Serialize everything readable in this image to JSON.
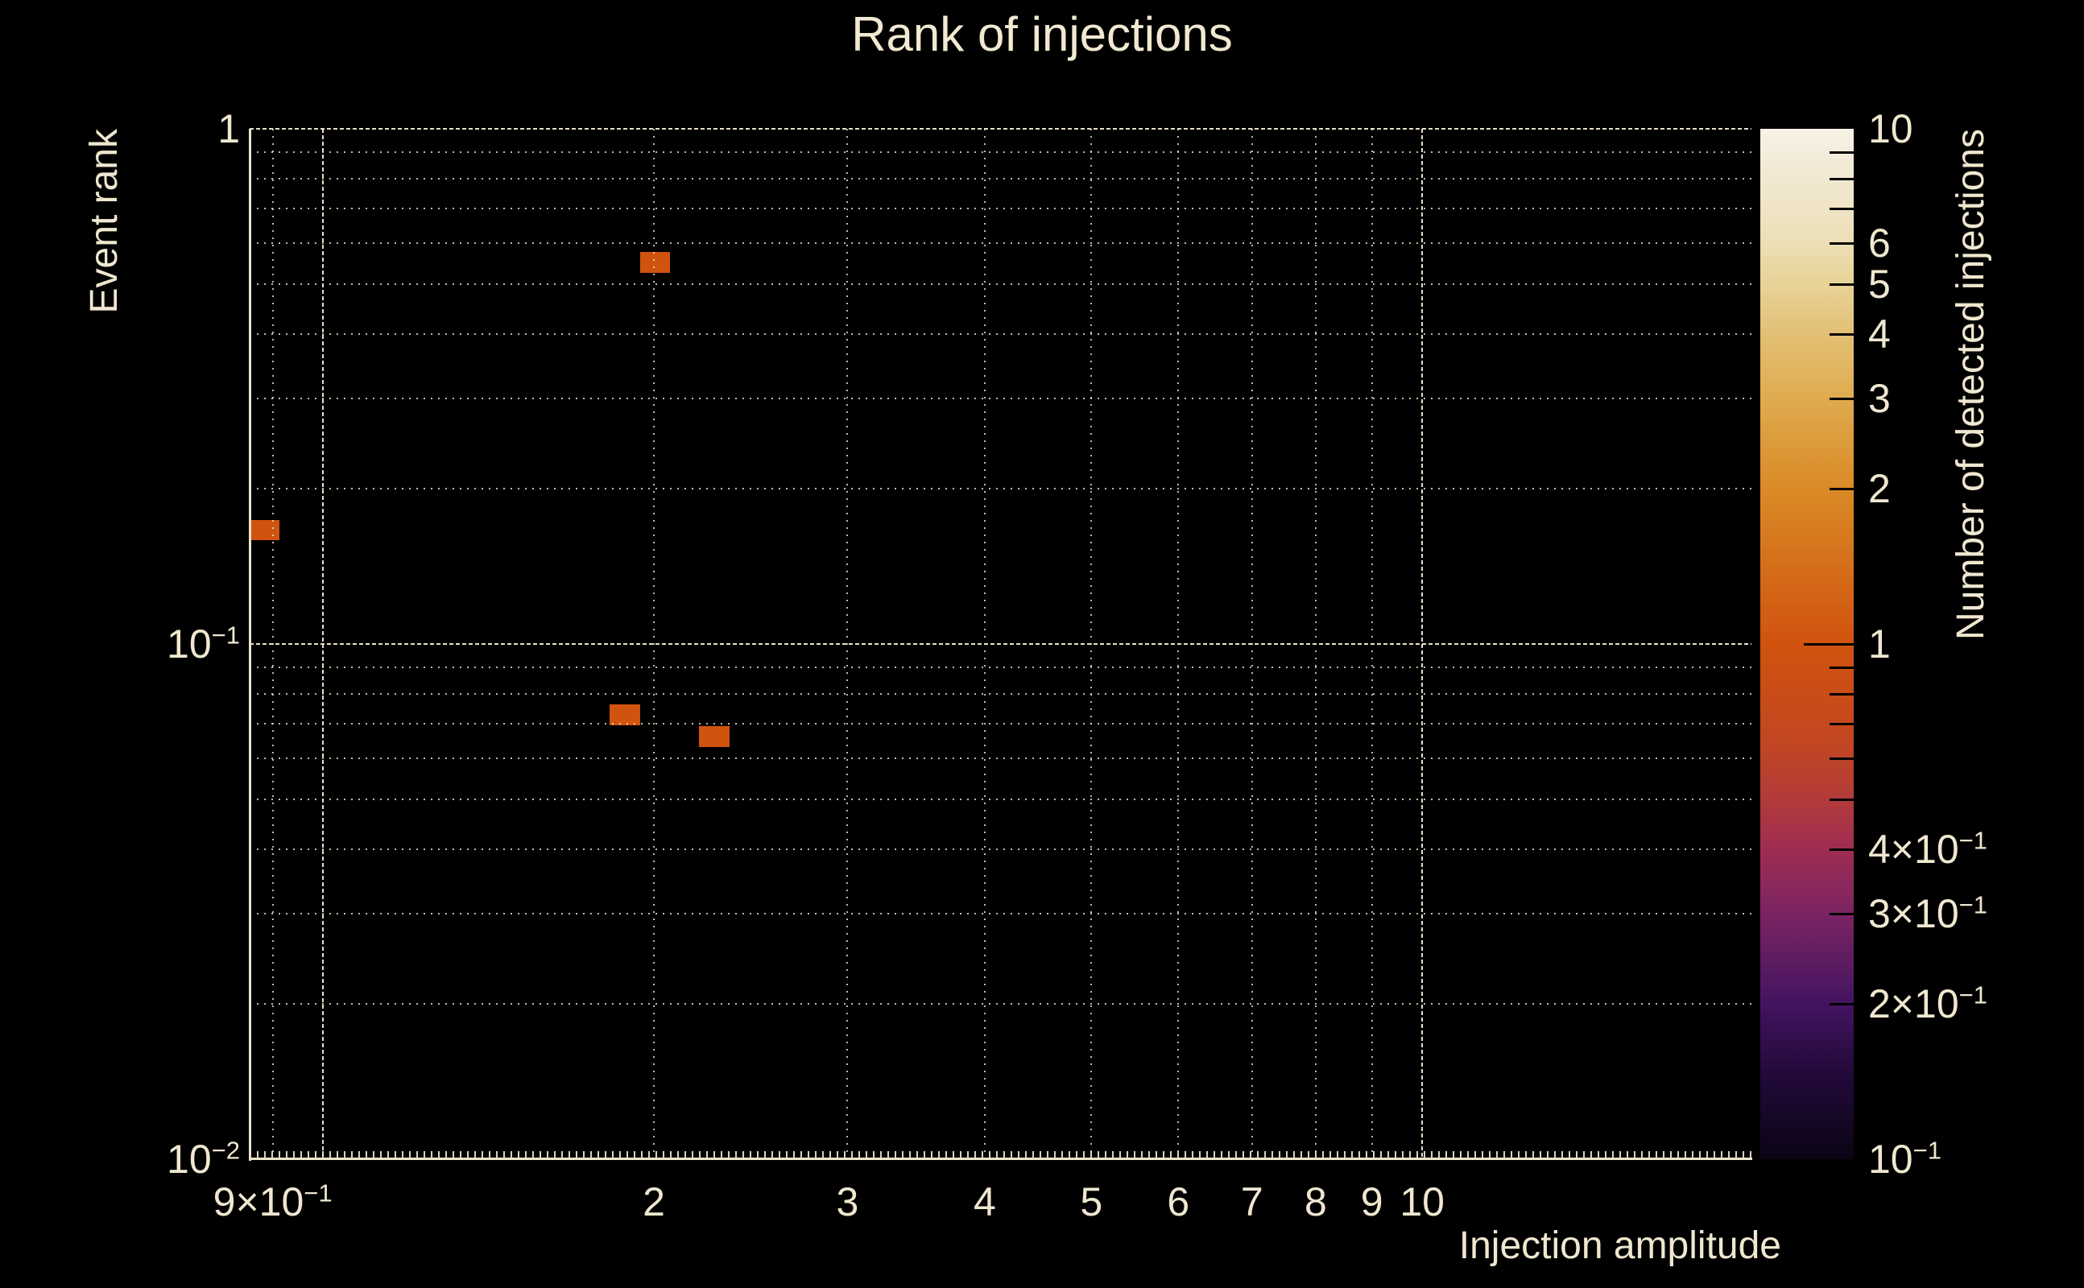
{
  "chart_data": {
    "type": "heatmap",
    "title": "Rank of injections",
    "xlabel": "Injection amplitude",
    "ylabel": "Event rank",
    "colorbar_label": "Number of detected injections",
    "xscale": "log",
    "yscale": "log",
    "colorscale": "log",
    "xlim": [
      0.8575,
      19.93
    ],
    "ylim": [
      0.01,
      1.0
    ],
    "clim": [
      0.1,
      10
    ],
    "grid": true,
    "bin_color": "#d0530e",
    "bins": [
      {
        "x": [
          0.859,
          0.913
        ],
        "y": [
          0.159,
          0.174
        ],
        "count": 1
      },
      {
        "x": [
          1.943,
          2.068
        ],
        "y": [
          0.525,
          0.577
        ],
        "count": 1
      },
      {
        "x": [
          1.823,
          1.943
        ],
        "y": [
          0.0695,
          0.0764
        ],
        "count": 1
      },
      {
        "x": [
          2.198,
          2.344
        ],
        "y": [
          0.0631,
          0.0693
        ],
        "count": 1
      }
    ],
    "x_grid": [
      {
        "v": 0.9
      },
      {
        "v": 1,
        "major": true
      },
      {
        "v": 2
      },
      {
        "v": 3
      },
      {
        "v": 4
      },
      {
        "v": 5
      },
      {
        "v": 6
      },
      {
        "v": 7
      },
      {
        "v": 8
      },
      {
        "v": 9
      },
      {
        "v": 10,
        "major": true
      }
    ],
    "y_grid": [
      {
        "v": 1,
        "major": true
      },
      {
        "v": 0.9
      },
      {
        "v": 0.8
      },
      {
        "v": 0.7
      },
      {
        "v": 0.6
      },
      {
        "v": 0.5
      },
      {
        "v": 0.4
      },
      {
        "v": 0.3
      },
      {
        "v": 0.2
      },
      {
        "v": 0.1,
        "major": true
      },
      {
        "v": 0.09
      },
      {
        "v": 0.08
      },
      {
        "v": 0.07
      },
      {
        "v": 0.06
      },
      {
        "v": 0.05
      },
      {
        "v": 0.04
      },
      {
        "v": 0.03
      },
      {
        "v": 0.02
      }
    ],
    "x_tick_labels": [
      {
        "v": 0.9,
        "base": "9×10",
        "exp": "−1"
      },
      {
        "v": 2,
        "base": "2"
      },
      {
        "v": 3,
        "base": "3"
      },
      {
        "v": 4,
        "base": "4"
      },
      {
        "v": 5,
        "base": "5"
      },
      {
        "v": 6,
        "base": "6"
      },
      {
        "v": 7,
        "base": "7"
      },
      {
        "v": 8,
        "base": "8"
      },
      {
        "v": 9,
        "base": "9"
      },
      {
        "v": 10,
        "base": "10"
      }
    ],
    "y_tick_labels": [
      {
        "v": 1,
        "base": "1"
      },
      {
        "v": 0.1,
        "base": "10",
        "exp": "−1"
      },
      {
        "v": 0.01,
        "base": "10",
        "exp": "−2"
      }
    ],
    "colorbar_tick_labels": [
      {
        "v": 10,
        "base": "10"
      },
      {
        "v": 6,
        "base": "6"
      },
      {
        "v": 5,
        "base": "5"
      },
      {
        "v": 4,
        "base": "4"
      },
      {
        "v": 3,
        "base": "3"
      },
      {
        "v": 2,
        "base": "2"
      },
      {
        "v": 1,
        "base": "1"
      },
      {
        "v": 0.4,
        "base": "4×10",
        "exp": "−1"
      },
      {
        "v": 0.3,
        "base": "3×10",
        "exp": "−1"
      },
      {
        "v": 0.2,
        "base": "2×10",
        "exp": "−1"
      },
      {
        "v": 0.1,
        "base": "10",
        "exp": "−1"
      }
    ],
    "colorbar_ticks": [
      {
        "v": 9
      },
      {
        "v": 8
      },
      {
        "v": 7
      },
      {
        "v": 6
      },
      {
        "v": 5
      },
      {
        "v": 4
      },
      {
        "v": 3
      },
      {
        "v": 2
      },
      {
        "v": 1,
        "major": true
      },
      {
        "v": 0.9
      },
      {
        "v": 0.8
      },
      {
        "v": 0.7
      },
      {
        "v": 0.6
      },
      {
        "v": 0.5
      },
      {
        "v": 0.4
      },
      {
        "v": 0.3
      },
      {
        "v": 0.2
      }
    ],
    "colormap_stops": [
      {
        "pos": 0,
        "color": "#0b0414"
      },
      {
        "pos": 8.6,
        "color": "#230a3c"
      },
      {
        "pos": 15.1,
        "color": "#431460"
      },
      {
        "pos": 23.8,
        "color": "#7b2463"
      },
      {
        "pos": 30.3,
        "color": "#a02d52"
      },
      {
        "pos": 35.0,
        "color": "#b23b39"
      },
      {
        "pos": 40.6,
        "color": "#c24721"
      },
      {
        "pos": 50.0,
        "color": "#d0530e"
      },
      {
        "pos": 65.1,
        "color": "#da8a27"
      },
      {
        "pos": 73.8,
        "color": "#dfab4e"
      },
      {
        "pos": 80.1,
        "color": "#e3c075"
      },
      {
        "pos": 84.9,
        "color": "#e8d297"
      },
      {
        "pos": 88.9,
        "color": "#ecdfb6"
      },
      {
        "pos": 95.2,
        "color": "#f1e8d1"
      },
      {
        "pos": 100,
        "color": "#f7f2e6"
      }
    ],
    "colors": {
      "background": "#000000",
      "text": "#efe7cf",
      "spine": "#ece4cb",
      "gridline": "#f0e8d0",
      "colorbar_tick": "#000000"
    }
  }
}
